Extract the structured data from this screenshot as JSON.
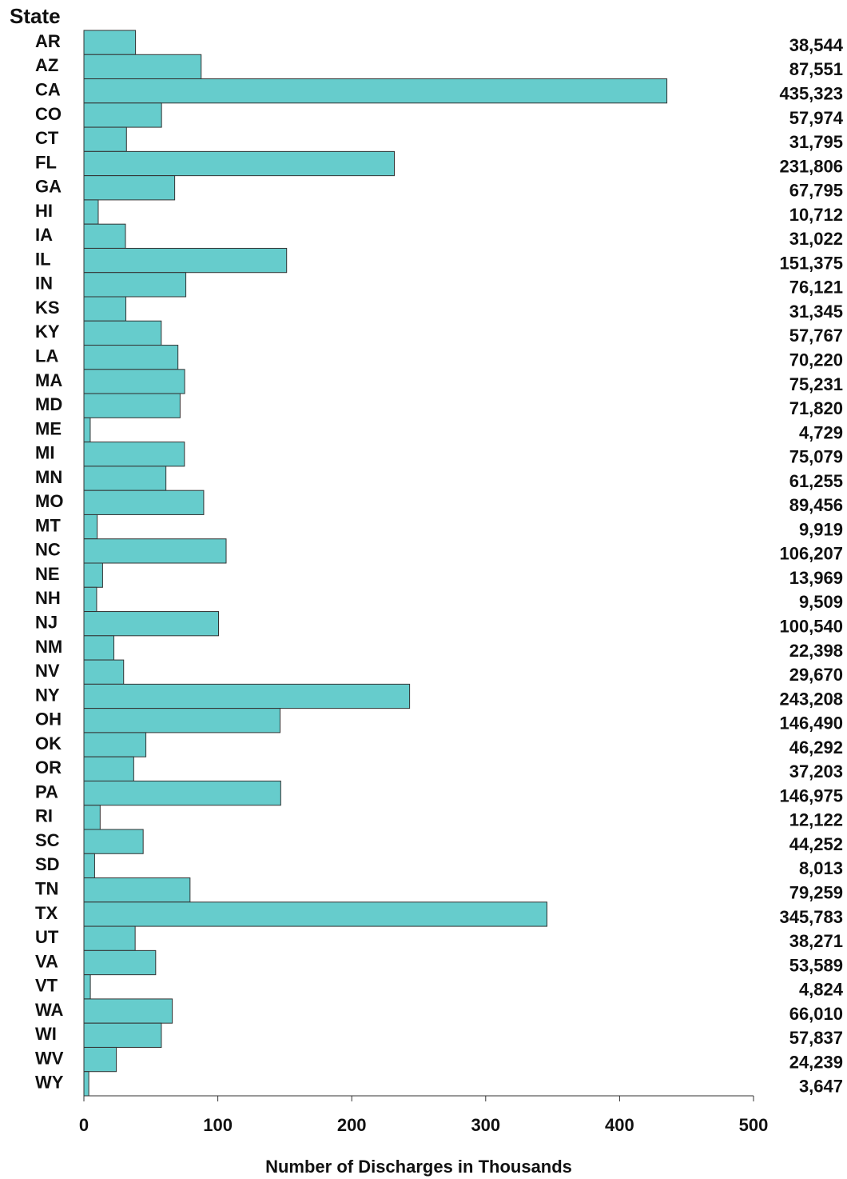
{
  "chart_data": {
    "type": "barh",
    "y_label": "State",
    "x_label": "Number of Discharges in Thousands",
    "categories": [
      "AR",
      "AZ",
      "CA",
      "CO",
      "CT",
      "FL",
      "GA",
      "HI",
      "IA",
      "IL",
      "IN",
      "KS",
      "KY",
      "LA",
      "MA",
      "MD",
      "ME",
      "MI",
      "MN",
      "MO",
      "MT",
      "NC",
      "NE",
      "NH",
      "NJ",
      "NM",
      "NV",
      "NY",
      "OH",
      "OK",
      "OR",
      "PA",
      "RI",
      "SC",
      "SD",
      "TN",
      "TX",
      "UT",
      "VA",
      "VT",
      "WA",
      "WI",
      "WV",
      "WY"
    ],
    "values": [
      38.544,
      87.551,
      435.323,
      57.974,
      31.795,
      231.806,
      67.795,
      10.712,
      31.022,
      151.375,
      76.121,
      31.345,
      57.767,
      70.22,
      75.231,
      71.82,
      4.729,
      75.079,
      61.255,
      89.456,
      9.919,
      106.207,
      13.969,
      9.509,
      100.54,
      22.398,
      29.67,
      243.208,
      146.49,
      46.292,
      37.203,
      146.975,
      12.122,
      44.252,
      8.013,
      79.259,
      345.783,
      38.271,
      53.589,
      4.824,
      66.01,
      57.837,
      24.239,
      3.647
    ],
    "value_labels": [
      "38,544",
      "87,551",
      "435,323",
      "57,974",
      "31,795",
      "231,806",
      "67,795",
      "10,712",
      "31,022",
      "151,375",
      "76,121",
      "31,345",
      "57,767",
      "70,220",
      "75,231",
      "71,820",
      "4,729",
      "75,079",
      "61,255",
      "89,456",
      "9,919",
      "106,207",
      "13,969",
      "9,509",
      "100,540",
      "22,398",
      "29,670",
      "243,208",
      "146,490",
      "46,292",
      "37,203",
      "146,975",
      "12,122",
      "44,252",
      "8,013",
      "79,259",
      "345,783",
      "38,271",
      "53,589",
      "4,824",
      "66,010",
      "57,837",
      "24,239",
      "3,647"
    ],
    "color": "#66cccc",
    "xlim": [
      0,
      500
    ],
    "xticks": [
      0,
      100,
      200,
      300,
      400,
      500
    ]
  }
}
